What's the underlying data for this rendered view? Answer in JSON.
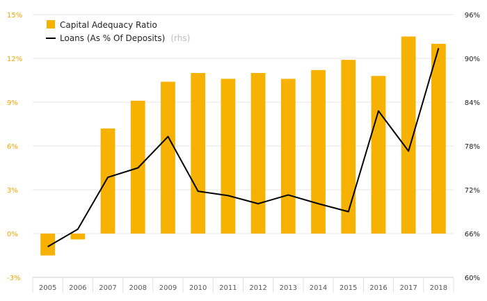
{
  "chart_data": {
    "type": "bar",
    "categories": [
      "2005",
      "2006",
      "2007",
      "2008",
      "2009",
      "2010",
      "2011",
      "2012",
      "2013",
      "2014",
      "2015",
      "2016",
      "2017",
      "2018"
    ],
    "series": [
      {
        "name": "Capital Adequacy Ratio",
        "type": "bar",
        "axis": "left",
        "color": "#F7B100",
        "values": [
          -1.5,
          -0.4,
          7.2,
          9.1,
          10.4,
          11.0,
          10.6,
          11.0,
          10.6,
          11.2,
          11.9,
          10.8,
          13.5,
          13.0
        ]
      },
      {
        "name": "Loans (As % Of Deposits)",
        "name_suffix": "(rhs)",
        "type": "line",
        "axis": "right",
        "color": "#000000",
        "values": [
          64.2,
          66.6,
          73.7,
          75.0,
          79.3,
          71.8,
          71.2,
          70.1,
          71.3,
          70.1,
          69.0,
          82.8,
          77.3,
          91.4
        ]
      }
    ],
    "y_left": {
      "min": -3,
      "max": 15,
      "ticks": [
        -3,
        0,
        3,
        6,
        9,
        12,
        15
      ],
      "tick_labels": [
        "-3%",
        "0%",
        "3%",
        "6%",
        "9%",
        "12%",
        "15%"
      ],
      "color": "#F7B100"
    },
    "y_right": {
      "min": 60,
      "max": 96,
      "ticks": [
        60,
        66,
        72,
        78,
        84,
        90,
        96
      ],
      "tick_labels": [
        "60%",
        "66%",
        "72%",
        "78%",
        "84%",
        "90%",
        "96%"
      ],
      "color": "#1a1a1a"
    },
    "grid": true,
    "legend_position": "top-left"
  }
}
